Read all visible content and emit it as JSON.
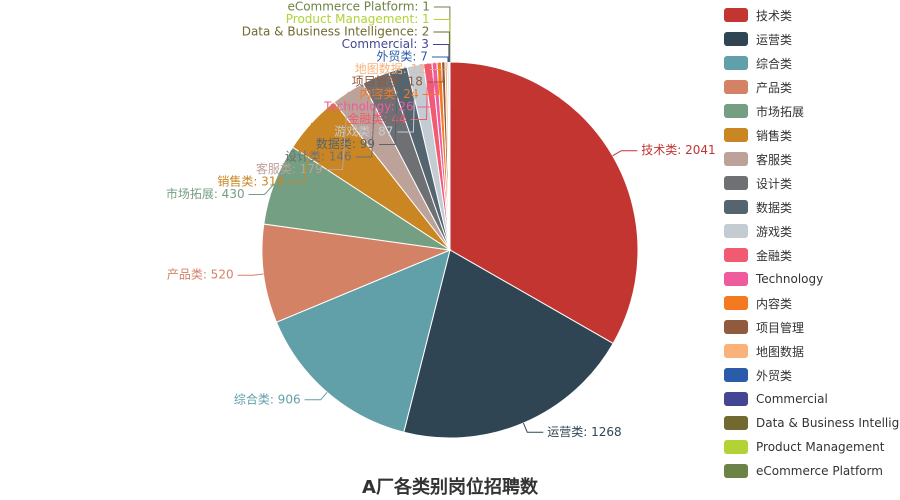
{
  "chart_data": {
    "type": "pie",
    "title": "A厂各类别岗位招聘数",
    "legend_position": "right",
    "slices": [
      {
        "name": "技术类",
        "value": 2041,
        "color": "#c23531"
      },
      {
        "name": "运营类",
        "value": 1268,
        "color": "#2f4554"
      },
      {
        "name": "综合类",
        "value": 906,
        "color": "#61a0a8"
      },
      {
        "name": "产品类",
        "value": 520,
        "color": "#d48265"
      },
      {
        "name": "市场拓展",
        "value": 430,
        "color": "#749f83"
      },
      {
        "name": "销售类",
        "value": 319,
        "color": "#ca8622"
      },
      {
        "name": "客服类",
        "value": 179,
        "color": "#bda29a"
      },
      {
        "name": "设计类",
        "value": 146,
        "color": "#6e7074"
      },
      {
        "name": "数据类",
        "value": 99,
        "color": "#546570"
      },
      {
        "name": "游戏类",
        "value": 87,
        "color": "#c4ccd3"
      },
      {
        "name": "金融类",
        "value": 44,
        "color": "#f05b72"
      },
      {
        "name": "Technology",
        "value": 26,
        "color": "#ef5b9c"
      },
      {
        "name": "内容类",
        "value": 24,
        "color": "#f47920"
      },
      {
        "name": "项目管理",
        "value": 18,
        "color": "#905a3d"
      },
      {
        "name": "地图数据",
        "value": 12,
        "color": "#fab27b"
      },
      {
        "name": "外贸类",
        "value": 7,
        "color": "#2a5caa"
      },
      {
        "name": "Commercial",
        "value": 3,
        "color": "#444693"
      },
      {
        "name": "Data & Business Intelligence",
        "value": 2,
        "color": "#726930"
      },
      {
        "name": "Product Management",
        "value": 1,
        "color": "#b2d235"
      },
      {
        "name": "eCommerce Platform",
        "value": 1,
        "color": "#6d8346"
      }
    ]
  }
}
